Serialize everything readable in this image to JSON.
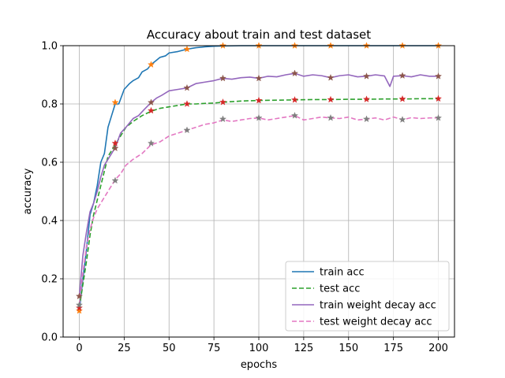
{
  "chart_data": {
    "type": "line",
    "title": "Accuracy about train and test dataset",
    "xlabel": "epochs",
    "ylabel": "accuracy",
    "xlim": [
      -9,
      209
    ],
    "ylim": [
      0,
      1.0
    ],
    "xticks": [
      0,
      25,
      50,
      75,
      100,
      125,
      150,
      175,
      200
    ],
    "yticks": [
      0.0,
      0.2,
      0.4,
      0.6,
      0.8,
      1.0
    ],
    "grid": true,
    "legend_position": "lower-right",
    "series": [
      {
        "name": "train acc",
        "color": "#1f77b4",
        "style": "solid",
        "marker_color": "#ff7f0e",
        "points": [
          [
            0,
            0.09
          ],
          [
            2,
            0.2
          ],
          [
            4,
            0.3
          ],
          [
            6,
            0.42
          ],
          [
            8,
            0.46
          ],
          [
            10,
            0.52
          ],
          [
            12,
            0.6
          ],
          [
            14,
            0.63
          ],
          [
            16,
            0.72
          ],
          [
            18,
            0.76
          ],
          [
            20,
            0.8
          ],
          [
            22,
            0.8
          ],
          [
            25,
            0.85
          ],
          [
            28,
            0.87
          ],
          [
            30,
            0.88
          ],
          [
            33,
            0.89
          ],
          [
            35,
            0.91
          ],
          [
            38,
            0.92
          ],
          [
            40,
            0.935
          ],
          [
            43,
            0.95
          ],
          [
            45,
            0.96
          ],
          [
            48,
            0.965
          ],
          [
            50,
            0.975
          ],
          [
            55,
            0.98
          ],
          [
            60,
            0.988
          ],
          [
            65,
            0.993
          ],
          [
            70,
            0.996
          ],
          [
            75,
            0.998
          ],
          [
            80,
            0.999
          ],
          [
            90,
            1.0
          ],
          [
            100,
            1.0
          ],
          [
            120,
            1.0
          ],
          [
            140,
            1.0
          ],
          [
            160,
            1.0
          ],
          [
            180,
            1.0
          ],
          [
            200,
            1.0
          ]
        ],
        "markers": [
          [
            0,
            0.09
          ],
          [
            20,
            0.805
          ],
          [
            40,
            0.935
          ],
          [
            60,
            0.988
          ],
          [
            80,
            1.0
          ],
          [
            100,
            1.0
          ],
          [
            120,
            1.0
          ],
          [
            140,
            1.0
          ],
          [
            160,
            1.0
          ],
          [
            180,
            1.0
          ],
          [
            200,
            1.0
          ]
        ]
      },
      {
        "name": "test acc",
        "color": "#2ca02c",
        "style": "dashed",
        "marker_color": "#d62728",
        "points": [
          [
            0,
            0.1
          ],
          [
            2,
            0.18
          ],
          [
            4,
            0.26
          ],
          [
            6,
            0.35
          ],
          [
            8,
            0.42
          ],
          [
            10,
            0.47
          ],
          [
            12,
            0.52
          ],
          [
            14,
            0.57
          ],
          [
            16,
            0.62
          ],
          [
            18,
            0.64
          ],
          [
            20,
            0.66
          ],
          [
            23,
            0.69
          ],
          [
            26,
            0.72
          ],
          [
            30,
            0.74
          ],
          [
            35,
            0.76
          ],
          [
            40,
            0.775
          ],
          [
            45,
            0.785
          ],
          [
            50,
            0.79
          ],
          [
            55,
            0.795
          ],
          [
            60,
            0.8
          ],
          [
            65,
            0.8
          ],
          [
            70,
            0.802
          ],
          [
            75,
            0.803
          ],
          [
            80,
            0.806
          ],
          [
            85,
            0.808
          ],
          [
            90,
            0.81
          ],
          [
            100,
            0.812
          ],
          [
            110,
            0.813
          ],
          [
            120,
            0.814
          ],
          [
            130,
            0.815
          ],
          [
            140,
            0.815
          ],
          [
            150,
            0.816
          ],
          [
            160,
            0.816
          ],
          [
            170,
            0.817
          ],
          [
            180,
            0.817
          ],
          [
            190,
            0.818
          ],
          [
            200,
            0.818
          ]
        ],
        "markers": [
          [
            0,
            0.1
          ],
          [
            20,
            0.665
          ],
          [
            40,
            0.777
          ],
          [
            60,
            0.8
          ],
          [
            80,
            0.806
          ],
          [
            100,
            0.812
          ],
          [
            120,
            0.814
          ],
          [
            140,
            0.815
          ],
          [
            160,
            0.816
          ],
          [
            180,
            0.817
          ],
          [
            200,
            0.818
          ]
        ]
      },
      {
        "name": "train weight decay acc",
        "color": "#9467bd",
        "style": "solid",
        "marker_color": "#8c564b",
        "points": [
          [
            0,
            0.14
          ],
          [
            2,
            0.28
          ],
          [
            4,
            0.36
          ],
          [
            6,
            0.43
          ],
          [
            8,
            0.46
          ],
          [
            10,
            0.5
          ],
          [
            12,
            0.55
          ],
          [
            14,
            0.59
          ],
          [
            16,
            0.61
          ],
          [
            18,
            0.63
          ],
          [
            20,
            0.65
          ],
          [
            23,
            0.7
          ],
          [
            26,
            0.72
          ],
          [
            30,
            0.75
          ],
          [
            33,
            0.76
          ],
          [
            36,
            0.78
          ],
          [
            40,
            0.805
          ],
          [
            43,
            0.82
          ],
          [
            46,
            0.83
          ],
          [
            50,
            0.845
          ],
          [
            55,
            0.85
          ],
          [
            60,
            0.855
          ],
          [
            65,
            0.87
          ],
          [
            70,
            0.875
          ],
          [
            75,
            0.88
          ],
          [
            80,
            0.888
          ],
          [
            85,
            0.885
          ],
          [
            90,
            0.89
          ],
          [
            95,
            0.892
          ],
          [
            100,
            0.888
          ],
          [
            105,
            0.895
          ],
          [
            110,
            0.893
          ],
          [
            115,
            0.9
          ],
          [
            120,
            0.905
          ],
          [
            125,
            0.895
          ],
          [
            130,
            0.9
          ],
          [
            135,
            0.897
          ],
          [
            140,
            0.89
          ],
          [
            145,
            0.897
          ],
          [
            150,
            0.9
          ],
          [
            155,
            0.893
          ],
          [
            160,
            0.895
          ],
          [
            165,
            0.9
          ],
          [
            170,
            0.896
          ],
          [
            173,
            0.86
          ],
          [
            175,
            0.895
          ],
          [
            180,
            0.897
          ],
          [
            185,
            0.893
          ],
          [
            190,
            0.9
          ],
          [
            195,
            0.895
          ],
          [
            200,
            0.895
          ]
        ],
        "markers": [
          [
            0,
            0.14
          ],
          [
            20,
            0.648
          ],
          [
            40,
            0.805
          ],
          [
            60,
            0.855
          ],
          [
            80,
            0.888
          ],
          [
            100,
            0.888
          ],
          [
            120,
            0.905
          ],
          [
            140,
            0.89
          ],
          [
            160,
            0.895
          ],
          [
            180,
            0.897
          ],
          [
            200,
            0.895
          ]
        ]
      },
      {
        "name": "test weight decay acc",
        "color": "#e377c2",
        "style": "dashed",
        "marker_color": "#7f7f7f",
        "points": [
          [
            0,
            0.11
          ],
          [
            2,
            0.22
          ],
          [
            4,
            0.31
          ],
          [
            6,
            0.37
          ],
          [
            8,
            0.41
          ],
          [
            10,
            0.44
          ],
          [
            12,
            0.46
          ],
          [
            14,
            0.48
          ],
          [
            16,
            0.5
          ],
          [
            18,
            0.52
          ],
          [
            20,
            0.54
          ],
          [
            23,
            0.56
          ],
          [
            26,
            0.59
          ],
          [
            30,
            0.61
          ],
          [
            35,
            0.63
          ],
          [
            40,
            0.66
          ],
          [
            45,
            0.67
          ],
          [
            50,
            0.69
          ],
          [
            55,
            0.7
          ],
          [
            60,
            0.71
          ],
          [
            65,
            0.72
          ],
          [
            70,
            0.73
          ],
          [
            75,
            0.735
          ],
          [
            80,
            0.745
          ],
          [
            85,
            0.74
          ],
          [
            90,
            0.745
          ],
          [
            95,
            0.75
          ],
          [
            100,
            0.752
          ],
          [
            105,
            0.745
          ],
          [
            110,
            0.75
          ],
          [
            115,
            0.755
          ],
          [
            120,
            0.76
          ],
          [
            125,
            0.745
          ],
          [
            130,
            0.75
          ],
          [
            135,
            0.755
          ],
          [
            140,
            0.752
          ],
          [
            145,
            0.75
          ],
          [
            150,
            0.755
          ],
          [
            155,
            0.745
          ],
          [
            160,
            0.748
          ],
          [
            165,
            0.752
          ],
          [
            170,
            0.745
          ],
          [
            175,
            0.755
          ],
          [
            180,
            0.746
          ],
          [
            185,
            0.753
          ],
          [
            190,
            0.75
          ],
          [
            195,
            0.752
          ],
          [
            200,
            0.752
          ]
        ],
        "markers": [
          [
            0,
            0.11
          ],
          [
            20,
            0.537
          ],
          [
            40,
            0.665
          ],
          [
            60,
            0.71
          ],
          [
            80,
            0.748
          ],
          [
            100,
            0.752
          ],
          [
            120,
            0.76
          ],
          [
            140,
            0.752
          ],
          [
            160,
            0.748
          ],
          [
            180,
            0.746
          ],
          [
            200,
            0.752
          ]
        ]
      }
    ]
  }
}
